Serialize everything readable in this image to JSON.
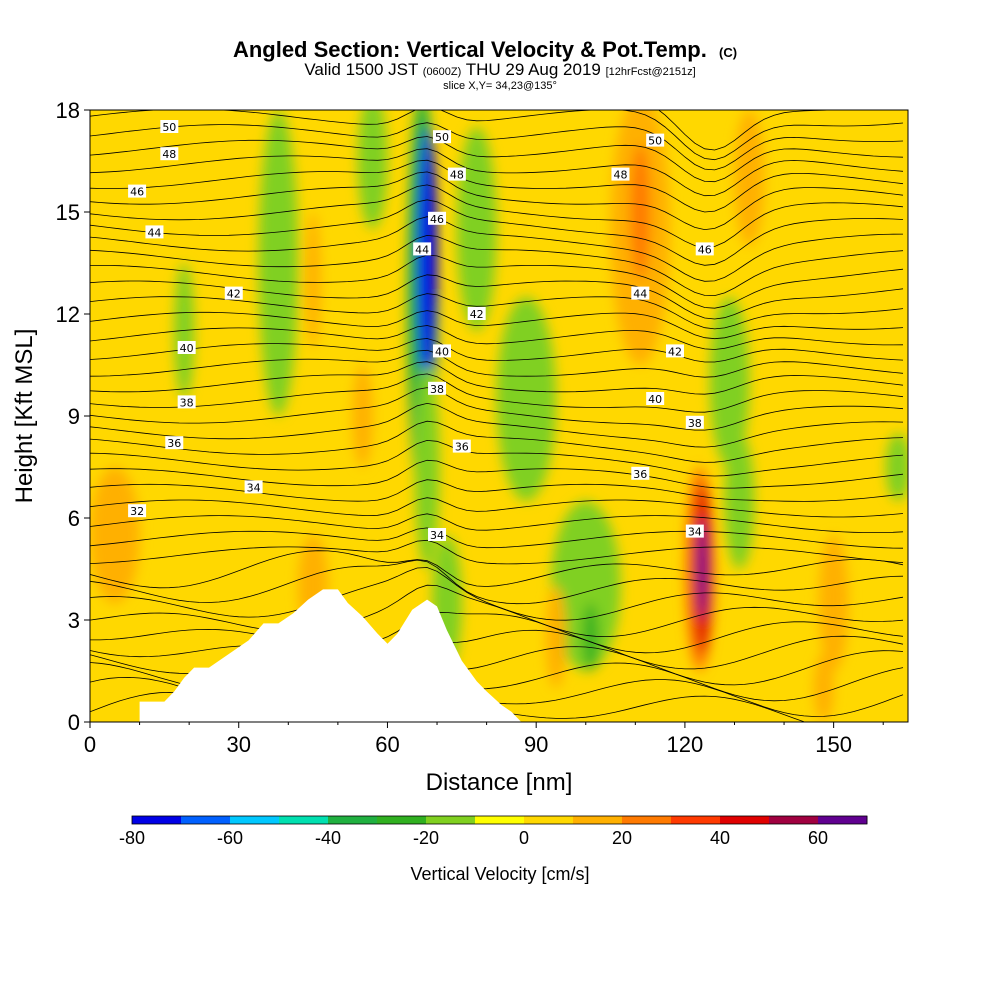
{
  "chart_data": {
    "type": "heatmap",
    "title": "Angled Section: Vertical Velocity & Pot.Temp.",
    "title_suffix": "(C)",
    "subtitle_main1": "Valid 1500 JST",
    "subtitle_small1": "(0600Z)",
    "subtitle_main2": "THU 29 Aug 2019",
    "subtitle_small2": "[12hrFcst@2151z]",
    "slice_label": "slice X,Y= 34,23@135°",
    "xlabel": "Distance [nm]",
    "ylabel": "Height [Kft MSL]",
    "xlim": [
      0,
      165
    ],
    "ylim": [
      0,
      18
    ],
    "xticks": [
      0,
      30,
      60,
      90,
      120,
      150
    ],
    "yticks": [
      0,
      3,
      6,
      9,
      12,
      15,
      18
    ],
    "colorbar": {
      "label": "Vertical Velocity [cm/s]",
      "min": -80,
      "max": 70,
      "step": 10,
      "ticks": [
        -80,
        -60,
        -40,
        -20,
        0,
        20,
        40,
        60
      ],
      "colors": [
        "#0000e6",
        "#0060ff",
        "#00c8ff",
        "#00e0b0",
        "#20b040",
        "#30b020",
        "#80d020",
        "#ffff00",
        "#ffd800",
        "#ffb000",
        "#ff7a00",
        "#ff3a00",
        "#e00000",
        "#a00040",
        "#600090"
      ]
    },
    "background_value": 5,
    "cells": [
      {
        "x": 38,
        "y": 13.5,
        "rx": 4,
        "ry": 4.5,
        "v": -20
      },
      {
        "x": 57,
        "y": 16.5,
        "rx": 3,
        "ry": 2,
        "v": -20
      },
      {
        "x": 19,
        "y": 11.5,
        "rx": 2,
        "ry": 2,
        "v": -15
      },
      {
        "x": 67,
        "y": 12.5,
        "rx": 3,
        "ry": 6,
        "v": -40
      },
      {
        "x": 68,
        "y": 13.5,
        "rx": 2,
        "ry": 4,
        "v": -75
      },
      {
        "x": 68,
        "y": 7.5,
        "rx": 2.5,
        "ry": 3,
        "v": -20
      },
      {
        "x": 72,
        "y": 3.5,
        "rx": 3,
        "ry": 2,
        "v": -20
      },
      {
        "x": 78,
        "y": 14.5,
        "rx": 4,
        "ry": 3,
        "v": -20
      },
      {
        "x": 88,
        "y": 9.5,
        "rx": 6,
        "ry": 3,
        "v": -15
      },
      {
        "x": 100,
        "y": 4,
        "rx": 7,
        "ry": 2.5,
        "v": -20
      },
      {
        "x": 101,
        "y": 2.5,
        "rx": 1.5,
        "ry": 1,
        "v": -30
      },
      {
        "x": 129,
        "y": 10,
        "rx": 4,
        "ry": 2.5,
        "v": -20
      },
      {
        "x": 131,
        "y": 6.5,
        "rx": 3,
        "ry": 2,
        "v": -15
      },
      {
        "x": 163,
        "y": 7.5,
        "rx": 2.5,
        "ry": 1,
        "v": -15
      },
      {
        "x": 111,
        "y": 14.5,
        "rx": 6,
        "ry": 4,
        "v": 15
      },
      {
        "x": 111,
        "y": 15,
        "rx": 2,
        "ry": 2,
        "v": 25
      },
      {
        "x": 133,
        "y": 16,
        "rx": 3,
        "ry": 2,
        "v": 15
      },
      {
        "x": 55,
        "y": 9,
        "rx": 2,
        "ry": 1.5,
        "v": 15
      },
      {
        "x": 45,
        "y": 13,
        "rx": 1.5,
        "ry": 2,
        "v": 15
      },
      {
        "x": 5,
        "y": 5.5,
        "rx": 5,
        "ry": 2,
        "v": 15
      },
      {
        "x": 45,
        "y": 4,
        "rx": 3,
        "ry": 1.5,
        "v": 15
      },
      {
        "x": 94,
        "y": 2.5,
        "rx": 2,
        "ry": 1.5,
        "v": 15
      },
      {
        "x": 123,
        "y": 4.5,
        "rx": 3,
        "ry": 3,
        "v": 25
      },
      {
        "x": 123.5,
        "y": 4.5,
        "rx": 2,
        "ry": 2.5,
        "v": 45
      },
      {
        "x": 123.5,
        "y": 4.5,
        "rx": 1,
        "ry": 1.5,
        "v": 65
      },
      {
        "x": 150,
        "y": 3.5,
        "rx": 3,
        "ry": 2,
        "v": 15
      },
      {
        "x": 148,
        "y": 1,
        "rx": 2,
        "ry": 1,
        "v": 15
      }
    ],
    "terrain": [
      [
        0,
        0
      ],
      [
        10,
        0
      ],
      [
        10,
        0.6
      ],
      [
        15,
        0.6
      ],
      [
        17,
        0.9
      ],
      [
        19,
        1.3
      ],
      [
        21,
        1.6
      ],
      [
        24,
        1.6
      ],
      [
        28,
        2.0
      ],
      [
        32,
        2.4
      ],
      [
        35,
        2.9
      ],
      [
        38,
        2.9
      ],
      [
        41,
        3.2
      ],
      [
        44,
        3.6
      ],
      [
        47,
        3.9
      ],
      [
        50,
        3.9
      ],
      [
        52,
        3.5
      ],
      [
        55,
        3.1
      ],
      [
        58,
        2.6
      ],
      [
        60,
        2.3
      ],
      [
        62,
        2.6
      ],
      [
        65,
        3.3
      ],
      [
        68,
        3.6
      ],
      [
        70,
        3.4
      ],
      [
        72,
        2.7
      ],
      [
        75,
        1.8
      ],
      [
        78,
        1.2
      ],
      [
        80,
        0.9
      ],
      [
        83,
        0.5
      ],
      [
        85,
        0.3
      ],
      [
        87,
        0
      ],
      [
        165,
        0
      ]
    ],
    "potential_temperature_labels": [
      {
        "text": "50",
        "x": 16,
        "y": 17.5
      },
      {
        "text": "48",
        "x": 16,
        "y": 16.7
      },
      {
        "text": "46",
        "x": 9.5,
        "y": 15.6
      },
      {
        "text": "44",
        "x": 13,
        "y": 14.4
      },
      {
        "text": "42",
        "x": 29,
        "y": 12.6
      },
      {
        "text": "40",
        "x": 19.5,
        "y": 11.0
      },
      {
        "text": "38",
        "x": 19.5,
        "y": 9.4
      },
      {
        "text": "36",
        "x": 17,
        "y": 8.2
      },
      {
        "text": "34",
        "x": 33,
        "y": 6.9
      },
      {
        "text": "32",
        "x": 9.5,
        "y": 6.2
      },
      {
        "text": "50",
        "x": 71,
        "y": 17.2
      },
      {
        "text": "48",
        "x": 74,
        "y": 16.1
      },
      {
        "text": "46",
        "x": 70,
        "y": 14.8
      },
      {
        "text": "44",
        "x": 67,
        "y": 13.9
      },
      {
        "text": "42",
        "x": 78,
        "y": 12.0
      },
      {
        "text": "40",
        "x": 71,
        "y": 10.9
      },
      {
        "text": "38",
        "x": 70,
        "y": 9.8
      },
      {
        "text": "36",
        "x": 75,
        "y": 8.1
      },
      {
        "text": "34",
        "x": 70,
        "y": 5.5
      },
      {
        "text": "50",
        "x": 114,
        "y": 17.1
      },
      {
        "text": "48",
        "x": 107,
        "y": 16.1
      },
      {
        "text": "46",
        "x": 124,
        "y": 13.9
      },
      {
        "text": "44",
        "x": 111,
        "y": 12.6
      },
      {
        "text": "42",
        "x": 118,
        "y": 10.9
      },
      {
        "text": "40",
        "x": 114,
        "y": 9.5
      },
      {
        "text": "38",
        "x": 122,
        "y": 8.8
      },
      {
        "text": "36",
        "x": 111,
        "y": 7.3
      },
      {
        "text": "34",
        "x": 122,
        "y": 5.6
      }
    ]
  }
}
